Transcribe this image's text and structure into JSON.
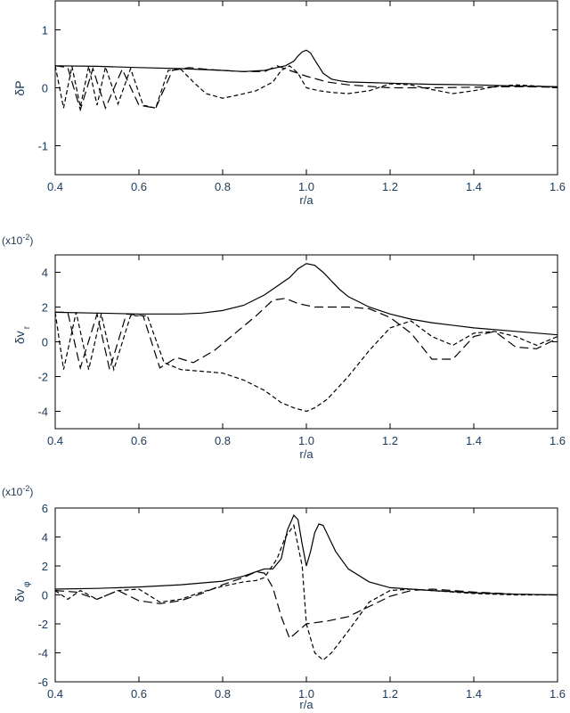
{
  "chart_data": [
    {
      "type": "line",
      "xlabel": "r/a",
      "ylabel": "δP",
      "ylabel_sub": "",
      "scale_note": "",
      "xlim": [
        0.4,
        1.6
      ],
      "ylim": [
        -1.5,
        1.5
      ],
      "xticks": [
        "0.4",
        "0.6",
        "0.8",
        "1.0",
        "1.2",
        "1.4",
        "1.6"
      ],
      "yticks": [
        "-1",
        "0",
        "1"
      ],
      "series": [
        {
          "style": "solid",
          "x": [
            0.4,
            0.5,
            0.6,
            0.7,
            0.8,
            0.85,
            0.9,
            0.93,
            0.95,
            0.97,
            0.98,
            0.99,
            1.0,
            1.01,
            1.02,
            1.04,
            1.06,
            1.08,
            1.1,
            1.15,
            1.2,
            1.3,
            1.4,
            1.5,
            1.6
          ],
          "y": [
            0.38,
            0.37,
            0.35,
            0.33,
            0.3,
            0.28,
            0.3,
            0.35,
            0.38,
            0.46,
            0.55,
            0.62,
            0.65,
            0.6,
            0.48,
            0.25,
            0.15,
            0.12,
            0.1,
            0.09,
            0.08,
            0.06,
            0.05,
            0.03,
            0.02
          ]
        },
        {
          "style": "dashed",
          "x": [
            0.4,
            0.42,
            0.44,
            0.46,
            0.48,
            0.5,
            0.52,
            0.55,
            0.58,
            0.61,
            0.64,
            0.67,
            0.7,
            0.73,
            0.76,
            0.8,
            0.84,
            0.88,
            0.92,
            0.94,
            0.96,
            0.98,
            1.0,
            1.03,
            1.06,
            1.1,
            1.15,
            1.2,
            1.25,
            1.3,
            1.35,
            1.4,
            1.45,
            1.5,
            1.55,
            1.6
          ],
          "y": [
            0.38,
            -0.35,
            0.37,
            -0.33,
            0.37,
            -0.3,
            0.36,
            -0.28,
            0.33,
            -0.3,
            -0.35,
            0.3,
            0.32,
            0.1,
            -0.1,
            -0.18,
            -0.12,
            -0.05,
            0.1,
            0.3,
            0.38,
            0.25,
            0.0,
            -0.05,
            -0.08,
            -0.1,
            -0.05,
            0.07,
            0.05,
            -0.03,
            -0.1,
            -0.05,
            0.02,
            0.05,
            0.03,
            0.01
          ]
        },
        {
          "style": "longdash",
          "x": [
            0.4,
            0.43,
            0.46,
            0.49,
            0.52,
            0.56,
            0.6,
            0.64,
            0.68,
            0.72,
            0.76,
            0.8,
            0.85,
            0.9,
            0.93,
            0.96,
            1.0,
            1.05,
            1.1,
            1.2,
            1.3,
            1.4,
            1.5,
            1.6
          ],
          "y": [
            0.38,
            0.35,
            -0.38,
            0.33,
            -0.35,
            0.32,
            -0.3,
            -0.35,
            0.3,
            0.35,
            0.32,
            0.3,
            0.28,
            0.28,
            0.38,
            0.3,
            0.2,
            0.1,
            0.05,
            0.0,
            0.0,
            0.01,
            0.02,
            0.01
          ]
        }
      ]
    },
    {
      "type": "line",
      "xlabel": "r/a",
      "ylabel": "δv",
      "ylabel_sub": "r",
      "scale_note": "(x10",
      "scale_exp": "-2",
      "scale_close": ")",
      "xlim": [
        0.4,
        1.6
      ],
      "ylim": [
        -5,
        5
      ],
      "xticks": [
        "0.4",
        "0.6",
        "0.8",
        "1.0",
        "1.2",
        "1.4",
        "1.6"
      ],
      "yticks": [
        "-4",
        "-2",
        "0",
        "2",
        "4"
      ],
      "series": [
        {
          "style": "solid",
          "x": [
            0.4,
            0.5,
            0.6,
            0.7,
            0.75,
            0.8,
            0.85,
            0.9,
            0.93,
            0.96,
            0.98,
            1.0,
            1.02,
            1.04,
            1.06,
            1.08,
            1.1,
            1.15,
            1.2,
            1.25,
            1.3,
            1.4,
            1.5,
            1.6
          ],
          "y": [
            1.7,
            1.65,
            1.6,
            1.6,
            1.65,
            1.8,
            2.1,
            2.7,
            3.2,
            3.7,
            4.2,
            4.5,
            4.4,
            4.0,
            3.5,
            3.0,
            2.6,
            2.0,
            1.6,
            1.3,
            1.1,
            0.8,
            0.6,
            0.4
          ]
        },
        {
          "style": "dashed",
          "x": [
            0.4,
            0.42,
            0.45,
            0.48,
            0.51,
            0.54,
            0.58,
            0.62,
            0.66,
            0.7,
            0.75,
            0.8,
            0.85,
            0.9,
            0.94,
            0.97,
            1.0,
            1.02,
            1.05,
            1.1,
            1.15,
            1.2,
            1.25,
            1.3,
            1.35,
            1.4,
            1.45,
            1.5,
            1.55,
            1.6
          ],
          "y": [
            1.7,
            -1.6,
            1.7,
            -1.6,
            1.6,
            -1.6,
            1.5,
            1.5,
            -1.2,
            -1.6,
            -1.7,
            -1.8,
            -2.2,
            -2.8,
            -3.5,
            -3.8,
            -4.0,
            -3.8,
            -3.3,
            -2.0,
            -0.5,
            0.8,
            1.2,
            0.3,
            -0.2,
            0.5,
            0.6,
            0.3,
            -0.2,
            0.3
          ]
        },
        {
          "style": "longdash",
          "x": [
            0.4,
            0.43,
            0.46,
            0.5,
            0.53,
            0.57,
            0.61,
            0.65,
            0.69,
            0.73,
            0.78,
            0.83,
            0.88,
            0.92,
            0.95,
            0.98,
            1.02,
            1.06,
            1.1,
            1.15,
            1.2,
            1.25,
            1.3,
            1.35,
            1.4,
            1.45,
            1.5,
            1.55,
            1.6
          ],
          "y": [
            1.7,
            1.7,
            -1.5,
            1.6,
            -1.6,
            1.6,
            1.5,
            -1.5,
            -0.9,
            -1.2,
            -0.5,
            0.5,
            1.5,
            2.4,
            2.5,
            2.2,
            2.0,
            2.0,
            2.0,
            1.9,
            1.4,
            0.5,
            -1.0,
            -1.0,
            0.3,
            0.6,
            -0.3,
            -0.4,
            0.2
          ]
        }
      ]
    },
    {
      "type": "line",
      "xlabel": "r/a",
      "ylabel": "δv",
      "ylabel_sub": "φ",
      "scale_note": "(x10",
      "scale_exp": "-2",
      "scale_close": ")",
      "xlim": [
        0.4,
        1.6
      ],
      "ylim": [
        -6,
        6
      ],
      "xticks": [
        "0.4",
        "0.6",
        "0.8",
        "1.0",
        "1.2",
        "1.4",
        "1.6"
      ],
      "yticks": [
        "-6",
        "-4",
        "-2",
        "0",
        "2",
        "4",
        "6"
      ],
      "series": [
        {
          "style": "solid",
          "x": [
            0.4,
            0.5,
            0.6,
            0.7,
            0.8,
            0.85,
            0.88,
            0.9,
            0.92,
            0.94,
            0.955,
            0.97,
            0.98,
            0.99,
            1.0,
            1.01,
            1.02,
            1.03,
            1.04,
            1.05,
            1.07,
            1.1,
            1.15,
            1.2,
            1.3,
            1.4,
            1.5,
            1.6
          ],
          "y": [
            0.4,
            0.45,
            0.55,
            0.7,
            0.95,
            1.3,
            1.6,
            1.8,
            1.8,
            2.5,
            4.5,
            5.5,
            5.2,
            3.5,
            2.0,
            3.0,
            4.3,
            4.9,
            4.8,
            4.2,
            3.0,
            1.8,
            0.9,
            0.5,
            0.3,
            0.15,
            0.05,
            0.0
          ]
        },
        {
          "style": "dashed",
          "x": [
            0.4,
            0.43,
            0.46,
            0.5,
            0.55,
            0.6,
            0.65,
            0.7,
            0.75,
            0.8,
            0.85,
            0.88,
            0.9,
            0.93,
            0.95,
            0.97,
            0.99,
            1.0,
            1.02,
            1.04,
            1.06,
            1.1,
            1.15,
            1.2,
            1.25,
            1.3,
            1.4,
            1.5,
            1.6
          ],
          "y": [
            0.3,
            -0.3,
            0.3,
            -0.3,
            0.3,
            0.4,
            -0.5,
            -0.3,
            0.2,
            0.6,
            0.9,
            1.0,
            1.2,
            2.5,
            4.0,
            4.8,
            2.0,
            -2.0,
            -4.0,
            -4.5,
            -4.0,
            -2.5,
            -0.5,
            0.3,
            0.4,
            0.3,
            0.1,
            0.0,
            0.0
          ]
        },
        {
          "style": "longdash",
          "x": [
            0.4,
            0.45,
            0.5,
            0.55,
            0.6,
            0.65,
            0.7,
            0.75,
            0.8,
            0.85,
            0.88,
            0.9,
            0.92,
            0.94,
            0.96,
            0.98,
            1.0,
            1.05,
            1.1,
            1.15,
            1.2,
            1.25,
            1.3,
            1.35,
            1.4,
            1.5,
            1.6
          ],
          "y": [
            0.3,
            0.2,
            -0.3,
            0.3,
            -0.4,
            -0.6,
            -0.4,
            0.1,
            0.7,
            1.2,
            1.6,
            1.5,
            0.5,
            -1.5,
            -3.0,
            -2.5,
            -2.0,
            -1.8,
            -1.5,
            -0.8,
            -0.1,
            0.3,
            0.4,
            0.3,
            0.2,
            0.05,
            0.0
          ]
        }
      ]
    }
  ]
}
